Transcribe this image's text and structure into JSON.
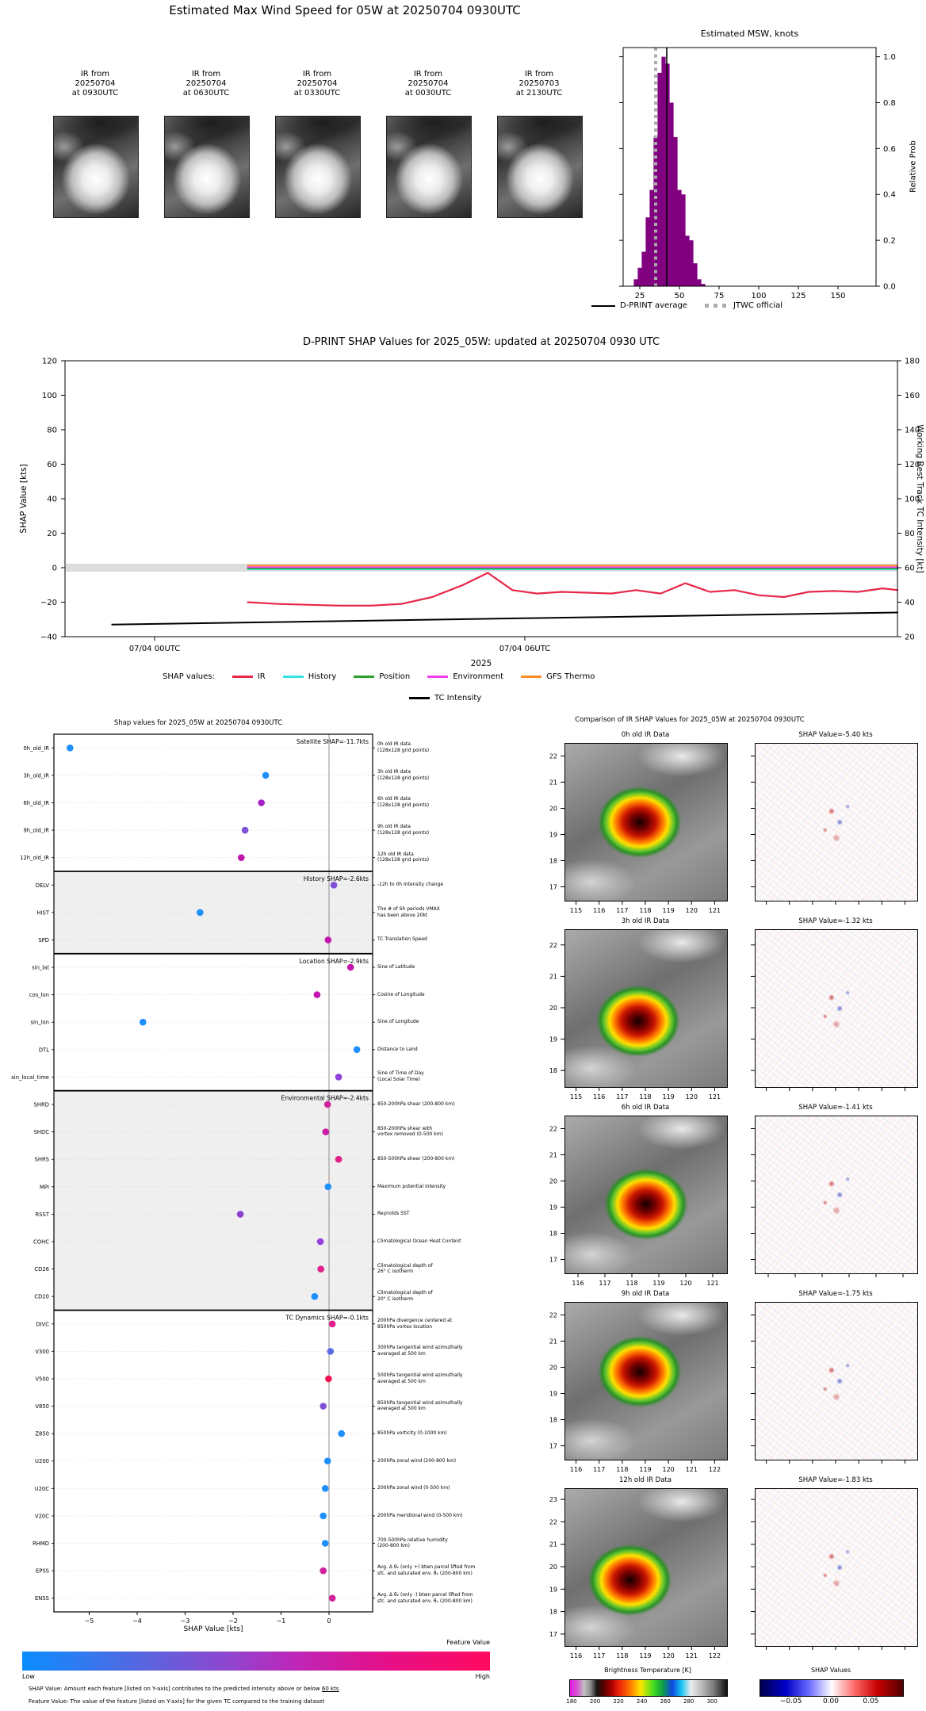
{
  "top": {
    "title": "Estimated Max Wind Speed for 05W at 20250704 0930UTC",
    "thumbnails": [
      {
        "label": "IR from\n20250704\nat 0930UTC"
      },
      {
        "label": "IR from\n20250704\nat 0630UTC"
      },
      {
        "label": "IR from\n20250704\nat 0330UTC"
      },
      {
        "label": "IR from\n20250704\nat 0030UTC"
      },
      {
        "label": "IR from\n20250703\nat 2130UTC"
      }
    ]
  },
  "chart_data": [
    {
      "id": "msw-histogram",
      "type": "bar",
      "title": "Estimated MSW, knots",
      "ylabel": "Relative Prob",
      "xticks": [
        25,
        50,
        75,
        100,
        125,
        150
      ],
      "yticks": [
        "0.0",
        "0.2",
        "0.4",
        "0.6",
        "0.8",
        "1.0"
      ],
      "xlim": [
        14.5,
        174
      ],
      "ylim": [
        0,
        1.04
      ],
      "bar_color": "#800080",
      "bin_width_kt": 2.5,
      "bins_kt": [
        22.5,
        25,
        27.5,
        30,
        32.5,
        35,
        37.5,
        40,
        42.5,
        45,
        47.5,
        50,
        52.5,
        55,
        57.5,
        60,
        62.5,
        65
      ],
      "rel_prob": [
        0.03,
        0.08,
        0.15,
        0.3,
        0.42,
        0.65,
        0.93,
        1.0,
        0.97,
        0.8,
        0.65,
        0.42,
        0.4,
        0.22,
        0.2,
        0.1,
        0.03,
        0.01
      ],
      "dprint_average_kt": 42,
      "jtwc_official_kt": 35,
      "legend": [
        {
          "label": "D-PRINT average",
          "style": "solid-black"
        },
        {
          "label": "JTWC official",
          "style": "dotted-gray"
        }
      ]
    },
    {
      "id": "shap-timeline",
      "type": "line",
      "title": "D-PRINT SHAP Values for 2025_05W: updated at 20250704 0930 UTC",
      "ylabel_left": "SHAP Value [kts]",
      "ylabel_right": "Working Best Track TC Intensity [kt]",
      "xlabel": "2025",
      "yticks_left": [
        120,
        100,
        80,
        60,
        40,
        20,
        0,
        -20,
        -40
      ],
      "yticks_right": [
        180,
        160,
        140,
        120,
        100,
        80,
        60,
        40,
        20
      ],
      "ylim_left": [
        -40,
        120
      ],
      "ylim_right": [
        20,
        180
      ],
      "xtick_labels": [
        "07/04 00UTC",
        "07/04 06UTC"
      ],
      "xtick_hours": [
        0,
        6
      ],
      "legend_title": "SHAP values:",
      "series": [
        {
          "name": "IR",
          "color": "#e8274b",
          "axis": "left",
          "x_hours": [
            1.5,
            2,
            2.5,
            3,
            3.5,
            4,
            4.5,
            5,
            5.4,
            5.8,
            6.2,
            6.6,
            7,
            7.4,
            7.8,
            8.2,
            8.6,
            9,
            9.4,
            9.8,
            10.2,
            10.6,
            11,
            11.4,
            11.8,
            12.05
          ],
          "y": [
            -20,
            -21,
            -21.5,
            -22,
            -22,
            -21,
            -17,
            -10,
            -3,
            -13,
            -15,
            -14,
            -14.5,
            -15,
            -13,
            -15,
            -9,
            -14,
            -13,
            -16,
            -17,
            -14,
            -13.5,
            -14,
            -12,
            -13
          ]
        },
        {
          "name": "History",
          "color": "#35e3e3",
          "axis": "left",
          "x_hours": [
            1.5,
            12.05
          ],
          "y": [
            -0.9,
            -0.9
          ]
        },
        {
          "name": "Position",
          "color": "#2ca02c",
          "axis": "left",
          "x_hours": [
            1.5,
            12.05
          ],
          "y": [
            -0.4,
            -0.4
          ]
        },
        {
          "name": "Environment",
          "color": "#f23ef2",
          "axis": "left",
          "x_hours": [
            1.5,
            12.05
          ],
          "y": [
            0.3,
            0.3
          ]
        },
        {
          "name": "GFS Thermo",
          "color": "#ff8c26",
          "axis": "left",
          "x_hours": [
            1.5,
            12.05
          ],
          "y": [
            1.3,
            1.3
          ]
        },
        {
          "name": "TC Intensity",
          "color": "#000000",
          "axis": "right",
          "x_hours": [
            -0.7,
            12.05
          ],
          "y": [
            27,
            34
          ]
        }
      ]
    },
    {
      "id": "shap-beeswarm",
      "type": "scatter",
      "title": "Shap values for 2025_05W at 20250704 0930UTC",
      "xlabel": "SHAP Value [kts]",
      "xticks": [
        -5,
        -4,
        -3,
        -2,
        -1,
        0
      ],
      "xlim": [
        -5.75,
        0.92
      ],
      "sections": [
        {
          "label": "Satellite SHAP=-11.7kts",
          "shaded": false,
          "features": [
            {
              "name": "0h_old_IR",
              "shap": -5.4,
              "color": "#1f8ffc",
              "desc": "0h old IR data\n(128x128 grid points)"
            },
            {
              "name": "3h_old_IR",
              "shap": -1.32,
              "color": "#1f8ffc",
              "desc": "3h old IR data\n(128x128 grid points)"
            },
            {
              "name": "6h_old_IR",
              "shap": -1.41,
              "color": "#a421c9",
              "desc": "6h old IR data\n(128x128 grid points)"
            },
            {
              "name": "9h_old_IR",
              "shap": -1.75,
              "color": "#7d52d6",
              "desc": "9h old IR data\n(128x128 grid points)"
            },
            {
              "name": "12h_old_IR",
              "shap": -1.83,
              "color": "#c215ae",
              "desc": "12h old IR data\n(128x128 grid points)"
            }
          ]
        },
        {
          "label": "History SHAP=-2.6kts",
          "shaded": true,
          "features": [
            {
              "name": "DELV",
              "shap": 0.1,
              "color": "#7d52d6",
              "desc": "-12h to 0h Intensity change"
            },
            {
              "name": "HIST",
              "shap": -2.69,
              "color": "#1f8ffc",
              "desc": "The # of 6h periods VMAX\nhas been above 20kt"
            },
            {
              "name": "SPD",
              "shap": -0.02,
              "color": "#c215ae",
              "desc": "TC Translation Speed"
            }
          ]
        },
        {
          "label": "Location SHAP=-2.9kts",
          "shaded": false,
          "features": [
            {
              "name": "sin_lat",
              "shap": 0.45,
              "color": "#c215ae",
              "desc": "Sine of Latitude"
            },
            {
              "name": "cos_lon",
              "shap": -0.25,
              "color": "#c215ae",
              "desc": "Cosine of Longitude"
            },
            {
              "name": "sin_lon",
              "shap": -3.88,
              "color": "#1f8ffc",
              "desc": "Sine of Longitude"
            },
            {
              "name": "DTL",
              "shap": 0.58,
              "color": "#1f8ffc",
              "desc": "Distance to Land"
            },
            {
              "name": "sin_local_time",
              "shap": 0.2,
              "color": "#8f43d6",
              "desc": "Sine of Time of Day\n(Local Solar Time)"
            }
          ]
        },
        {
          "label": "Environmental SHAP=-2.4kts",
          "shaded": true,
          "features": [
            {
              "name": "SHRD",
              "shap": -0.03,
              "color": "#d3219e",
              "desc": "850-200hPa shear (200-800 km)"
            },
            {
              "name": "SHDC",
              "shap": -0.07,
              "color": "#cb1da5",
              "desc": "850-200hPa shear with\nvortex removed (0-500 km)"
            },
            {
              "name": "SHRS",
              "shap": 0.2,
              "color": "#e0218a",
              "desc": "850-500hPa shear (200-800 km)"
            },
            {
              "name": "MPI",
              "shap": -0.02,
              "color": "#1f8ffc",
              "desc": "Maximum potential intensity"
            },
            {
              "name": "RSST",
              "shap": -1.85,
              "color": "#8a3fd0",
              "desc": "Reynolds SST"
            },
            {
              "name": "COHC",
              "shap": -0.18,
              "color": "#9440db",
              "desc": "Climatological Ocean Heat Content"
            },
            {
              "name": "CD26",
              "shap": -0.17,
              "color": "#e0218a",
              "desc": "Climatological depth of\n26° C isotherm"
            },
            {
              "name": "CD20",
              "shap": -0.3,
              "color": "#1f8ffc",
              "desc": "Climatological depth of\n20° C isotherm"
            }
          ]
        },
        {
          "label": "TC Dynamics SHAP=-0.1kts",
          "shaded": false,
          "features": [
            {
              "name": "DIVC",
              "shap": 0.07,
              "color": "#e0218a",
              "desc": "200hPa divergence centered at\n850hPa vortex location"
            },
            {
              "name": "V300",
              "shap": 0.03,
              "color": "#5a6ce3",
              "desc": "300hPa tangential wind azimuthally\naveraged at 500 km"
            },
            {
              "name": "V500",
              "shap": -0.01,
              "color": "#f0134f",
              "desc": "500hPa tangential wind azimuthally\naveraged at 500 km"
            },
            {
              "name": "V850",
              "shap": -0.12,
              "color": "#7d52d6",
              "desc": "850hPa tangential wind azimuthally\naveraged at 500 km"
            },
            {
              "name": "Z850",
              "shap": 0.26,
              "color": "#1f8ffc",
              "desc": "850hPa vorticity (0-1000 km)"
            },
            {
              "name": "U200",
              "shap": -0.03,
              "color": "#1f8ffc",
              "desc": "200hPa zonal wind (200-800 km)"
            },
            {
              "name": "U20C",
              "shap": -0.08,
              "color": "#1f8ffc",
              "desc": "200hPa zonal wind (0-500 km)"
            },
            {
              "name": "V20C",
              "shap": -0.12,
              "color": "#1f8ffc",
              "desc": "200hPa meridional wind (0-500 km)"
            },
            {
              "name": "RHMD",
              "shap": -0.08,
              "color": "#1f8ffc",
              "desc": "700-500hPa relative humidity\n(200-800 km)"
            },
            {
              "name": "EPSS",
              "shap": -0.12,
              "color": "#d3219e",
              "desc": "Avg. Δ θₑ (only +) btwn parcel lifted from\nsfc. and saturated env. θₑ (200-800 km)"
            },
            {
              "name": "ENSS",
              "shap": 0.07,
              "color": "#d3219e",
              "desc": "Avg. Δ θₑ (only -) btwn parcel lifted from\nsfc. and saturated env. θₑ (200-800 km)"
            }
          ]
        }
      ],
      "colorbar": {
        "label": "Feature Value",
        "low": "Low",
        "high": "High"
      }
    }
  ],
  "footnotes": {
    "line1_prefix": "SHAP Value: Amount each feature [listed on Y-axis] contributes to the predicted intensity above or below ",
    "line1_underline": "60 kts",
    "line2": "Feature Value: The value of the feature [listed on Y-axis] for the given TC compared to the training dataset"
  },
  "comparison": {
    "title": "Comparison of IR SHAP Values for 2025_05W at 20250704 0930UTC",
    "rows": [
      {
        "ir_title": "0h old IR Data",
        "shap_title": "SHAP Value=-5.40 kts",
        "yticks": [
          22,
          21,
          20,
          19,
          18,
          17
        ],
        "xticks": [
          115,
          116,
          117,
          118,
          119,
          120,
          121
        ]
      },
      {
        "ir_title": "3h old IR Data",
        "shap_title": "SHAP Value=-1.32 kts",
        "yticks": [
          22,
          21,
          20,
          19,
          18
        ],
        "xticks": [
          115,
          116,
          117,
          118,
          119,
          120,
          121
        ]
      },
      {
        "ir_title": "6h old IR Data",
        "shap_title": "SHAP Value=-1.41 kts",
        "yticks": [
          22,
          21,
          20,
          19,
          18,
          17
        ],
        "xticks": [
          116,
          117,
          118,
          119,
          120,
          121
        ]
      },
      {
        "ir_title": "9h old IR Data",
        "shap_title": "SHAP Value=-1.75 kts",
        "yticks": [
          22,
          21,
          20,
          19,
          18,
          17
        ],
        "xticks": [
          116,
          117,
          118,
          119,
          120,
          121,
          122
        ]
      },
      {
        "ir_title": "12h old IR Data",
        "shap_title": "SHAP Value=-1.83 kts",
        "yticks": [
          23,
          22,
          21,
          20,
          19,
          18,
          17
        ],
        "xticks": [
          116,
          117,
          118,
          119,
          120,
          121,
          122
        ]
      }
    ],
    "bt_colorbar": {
      "title": "Brightness Temperature [K]",
      "ticks": [
        180,
        200,
        220,
        240,
        260,
        280,
        300
      ]
    },
    "shap_colorbar": {
      "title": "SHAP Values",
      "ticks": [
        "-0.05",
        "0.00",
        "0.05"
      ]
    }
  }
}
